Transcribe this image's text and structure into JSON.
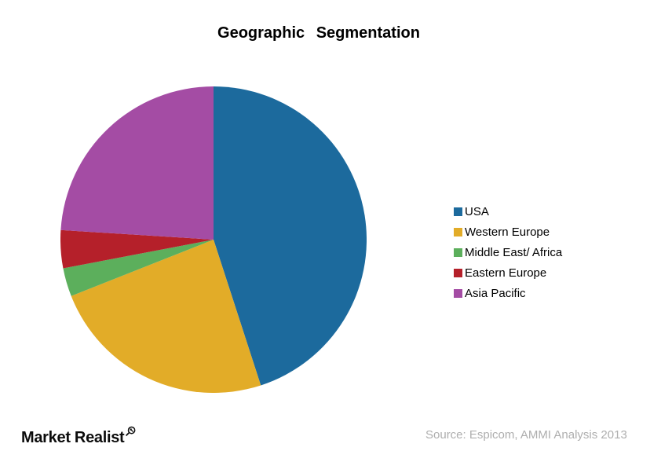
{
  "chart_data": {
    "type": "pie",
    "title": "Geographic Segmentation",
    "categories": [
      "USA",
      "Western Europe",
      "Middle East/ Africa",
      "Eastern Europe",
      "Asia Pacific"
    ],
    "values": [
      45,
      24,
      3,
      4,
      24
    ],
    "unit": "percent-of-circle (estimated from slice angles)",
    "colors": [
      "#1C6A9D",
      "#E2AC28",
      "#5CAF5C",
      "#B5202A",
      "#A44CA4"
    ],
    "start_angle": "12 o'clock",
    "direction": "clockwise",
    "legend_position": "right",
    "grid": false
  },
  "footer": {
    "brand": "Market Realist",
    "source": "Source: Espicom, AMMI Analysis 2013"
  },
  "palette": {
    "title_color": "#000000",
    "legend_text_color": "#000000",
    "source_text_color": "#aeaeae",
    "background": "#ffffff"
  }
}
